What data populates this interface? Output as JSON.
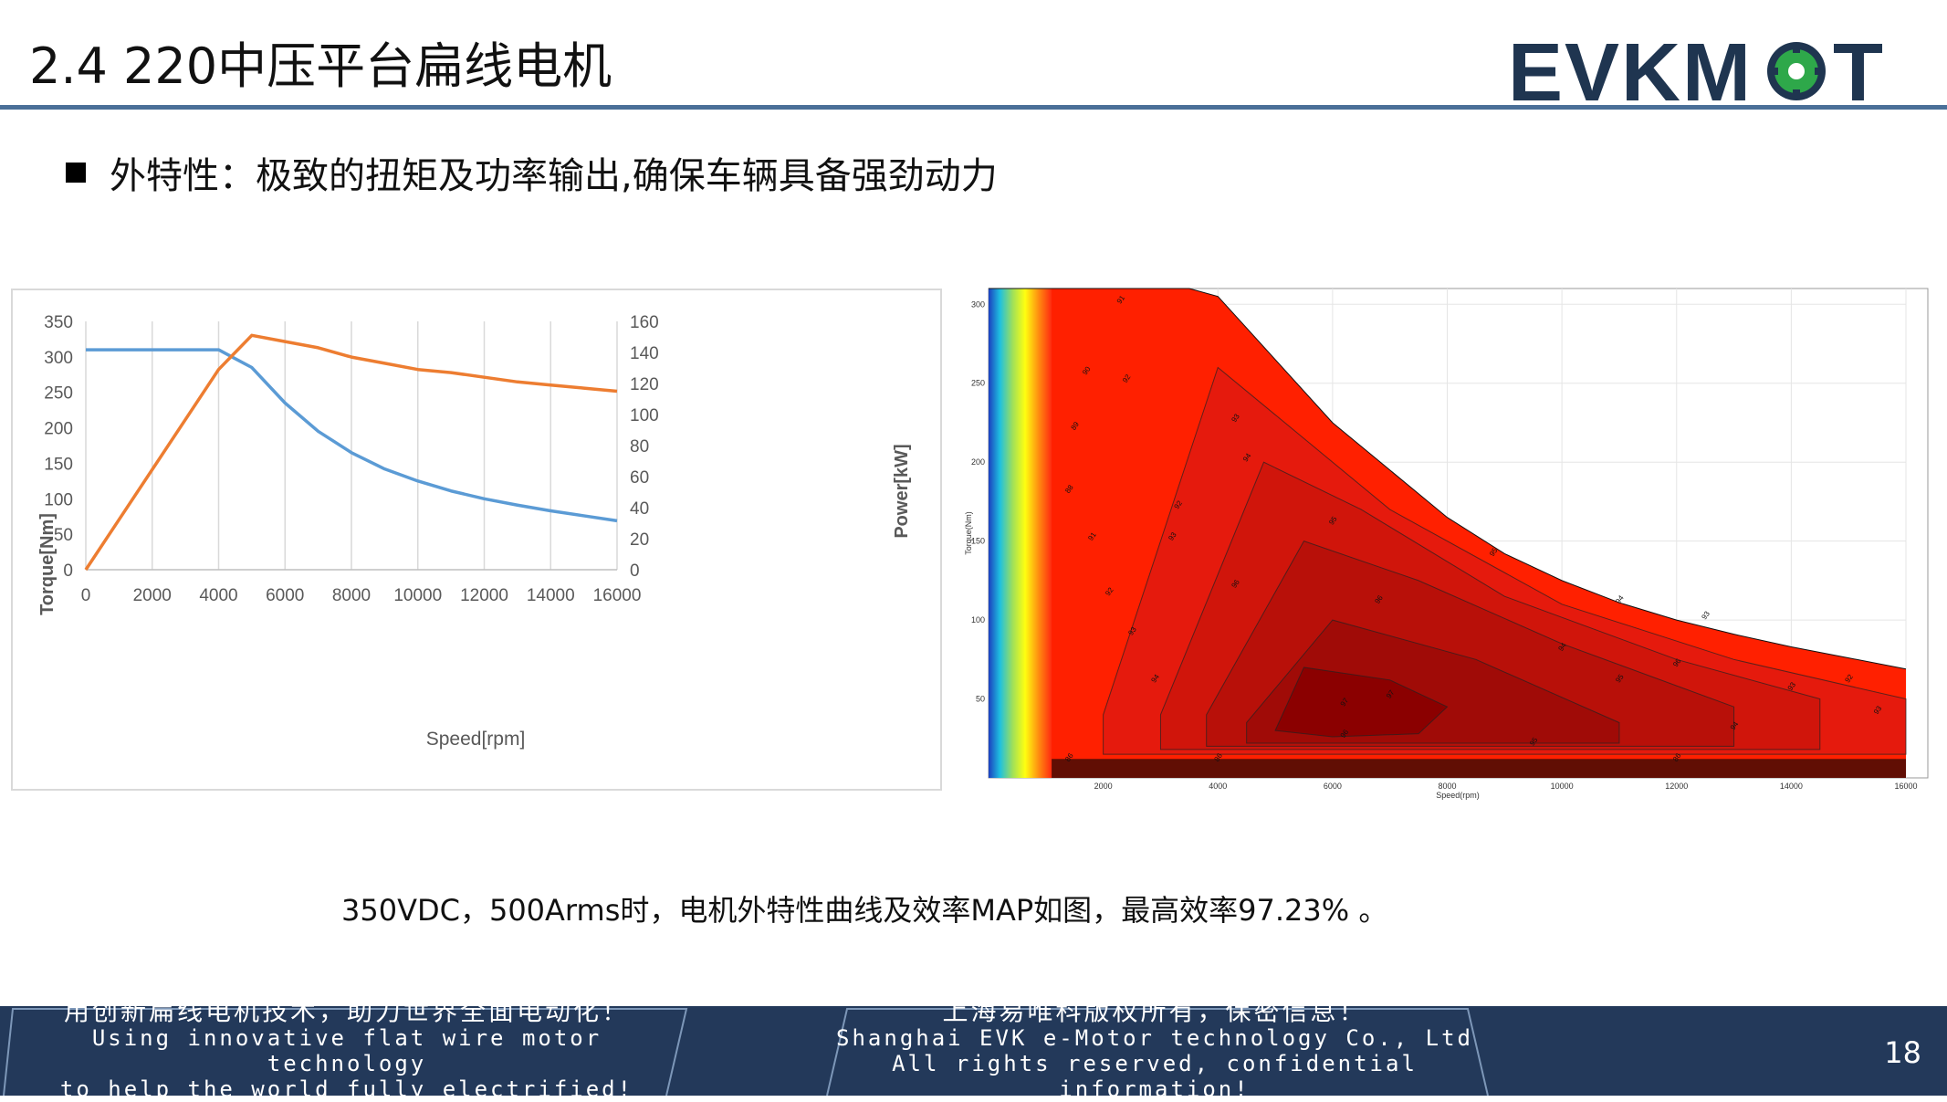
{
  "header": {
    "title": "2.4 220中压平台扁线电机",
    "logo_text": "EVKMOT"
  },
  "bullet": {
    "text": "外特性：极致的扭矩及功率输出,确保车辆具备强劲动力"
  },
  "caption": "350VDC，500Arms时，电机外特性曲线及效率MAP如图，最高效率97.23% 。",
  "chart_data": [
    {
      "type": "line",
      "title": "",
      "xlabel": "Speed[rpm]",
      "ylabel": "Torque[Nm]",
      "y2label": "Power[kW]",
      "xlim": [
        0,
        16000
      ],
      "ylim": [
        0,
        350
      ],
      "y2lim": [
        0,
        160
      ],
      "x_ticks": [
        0,
        2000,
        4000,
        6000,
        8000,
        10000,
        12000,
        14000,
        16000
      ],
      "y_ticks": [
        0,
        50,
        100,
        150,
        200,
        250,
        300,
        350
      ],
      "y2_ticks": [
        0,
        20,
        40,
        60,
        80,
        100,
        120,
        140,
        160
      ],
      "grid": "vertical",
      "series": [
        {
          "axis": "left",
          "color": "#5b9bd5",
          "x": [
            0,
            1000,
            2000,
            3000,
            4000,
            5000,
            6000,
            7000,
            8000,
            9000,
            10000,
            11000,
            12000,
            13000,
            14000,
            15000,
            16000
          ],
          "values": [
            310,
            310,
            310,
            310,
            310,
            285,
            235,
            195,
            165,
            142,
            125,
            111,
            100,
            91,
            83,
            76,
            69
          ]
        },
        {
          "axis": "right",
          "color": "#ed7d31",
          "x": [
            0,
            4000,
            5000,
            6000,
            7000,
            8000,
            9000,
            10000,
            11000,
            12000,
            13000,
            14000,
            15000,
            16000
          ],
          "values": [
            0,
            129,
            151,
            147,
            143,
            137,
            133,
            129,
            127,
            124,
            121,
            119,
            117,
            115
          ]
        }
      ]
    },
    {
      "type": "heatmap",
      "title": "",
      "xlabel": "Speed(rpm)",
      "ylabel": "Torque(Nm)",
      "xlim": [
        0,
        16000
      ],
      "ylim": [
        0,
        310
      ],
      "x_ticks": [
        2000,
        4000,
        6000,
        8000,
        10000,
        12000,
        14000,
        16000
      ],
      "y_ticks": [
        50,
        100,
        150,
        200,
        250,
        300
      ],
      "max_efficiency": 97.23,
      "contour_levels": [
        86,
        88,
        89,
        90,
        91,
        92,
        93,
        94,
        95,
        96,
        97
      ],
      "colormap": [
        "#2040c0",
        "#20c0e0",
        "#a0e060",
        "#ffff00",
        "#ff8000",
        "#ff2000",
        "#8b0000"
      ]
    }
  ],
  "footer": {
    "left_cn": "用创新扁线电机技术，助力世界全面电动化！",
    "left_en_1": "Using innovative flat wire motor technology",
    "left_en_2": "to help the world fully electrified!",
    "right_cn": "上海易唯科版权所有，保密信息！",
    "right_en_1": "Shanghai EVK e-Motor technology Co., Ltd",
    "right_en_2": "All rights reserved,  confidential information!",
    "page_number": "18"
  }
}
